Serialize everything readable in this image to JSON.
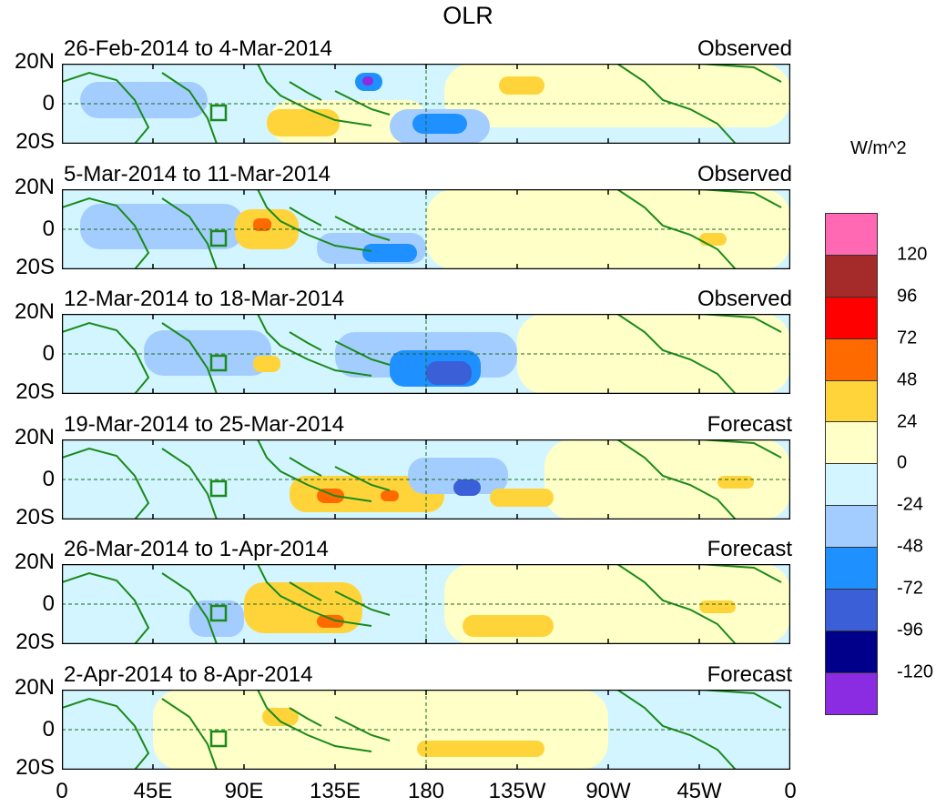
{
  "title": "OLR",
  "units": "W/m^2",
  "lat_labels": [
    "20N",
    "0",
    "20S"
  ],
  "x_labels": [
    "0",
    "45E",
    "90E",
    "135E",
    "180",
    "135W",
    "90W",
    "45W",
    "0"
  ],
  "panels": [
    {
      "period": "26-Feb-2014 to 4-Mar-2014",
      "kind": "Observed"
    },
    {
      "period": "5-Mar-2014 to 11-Mar-2014",
      "kind": "Observed"
    },
    {
      "period": "12-Mar-2014 to 18-Mar-2014",
      "kind": "Observed"
    },
    {
      "period": "19-Mar-2014 to 25-Mar-2014",
      "kind": "Forecast"
    },
    {
      "period": "26-Mar-2014 to 1-Apr-2014",
      "kind": "Forecast"
    },
    {
      "period": "2-Apr-2014 to 8-Apr-2014",
      "kind": "Forecast"
    }
  ],
  "colorbar": {
    "labels": [
      "120",
      "96",
      "72",
      "48",
      "24",
      "0",
      "-24",
      "-48",
      "-72",
      "-96",
      "-120"
    ],
    "colors": [
      "#ff69b4",
      "#a52a2a",
      "#ff0000",
      "#ff6a00",
      "#ffd43b",
      "#ffffc8",
      "#d2f5ff",
      "#a4cdff",
      "#1e90ff",
      "#3a5fd6",
      "#00008b",
      "#8b2be2"
    ]
  }
}
